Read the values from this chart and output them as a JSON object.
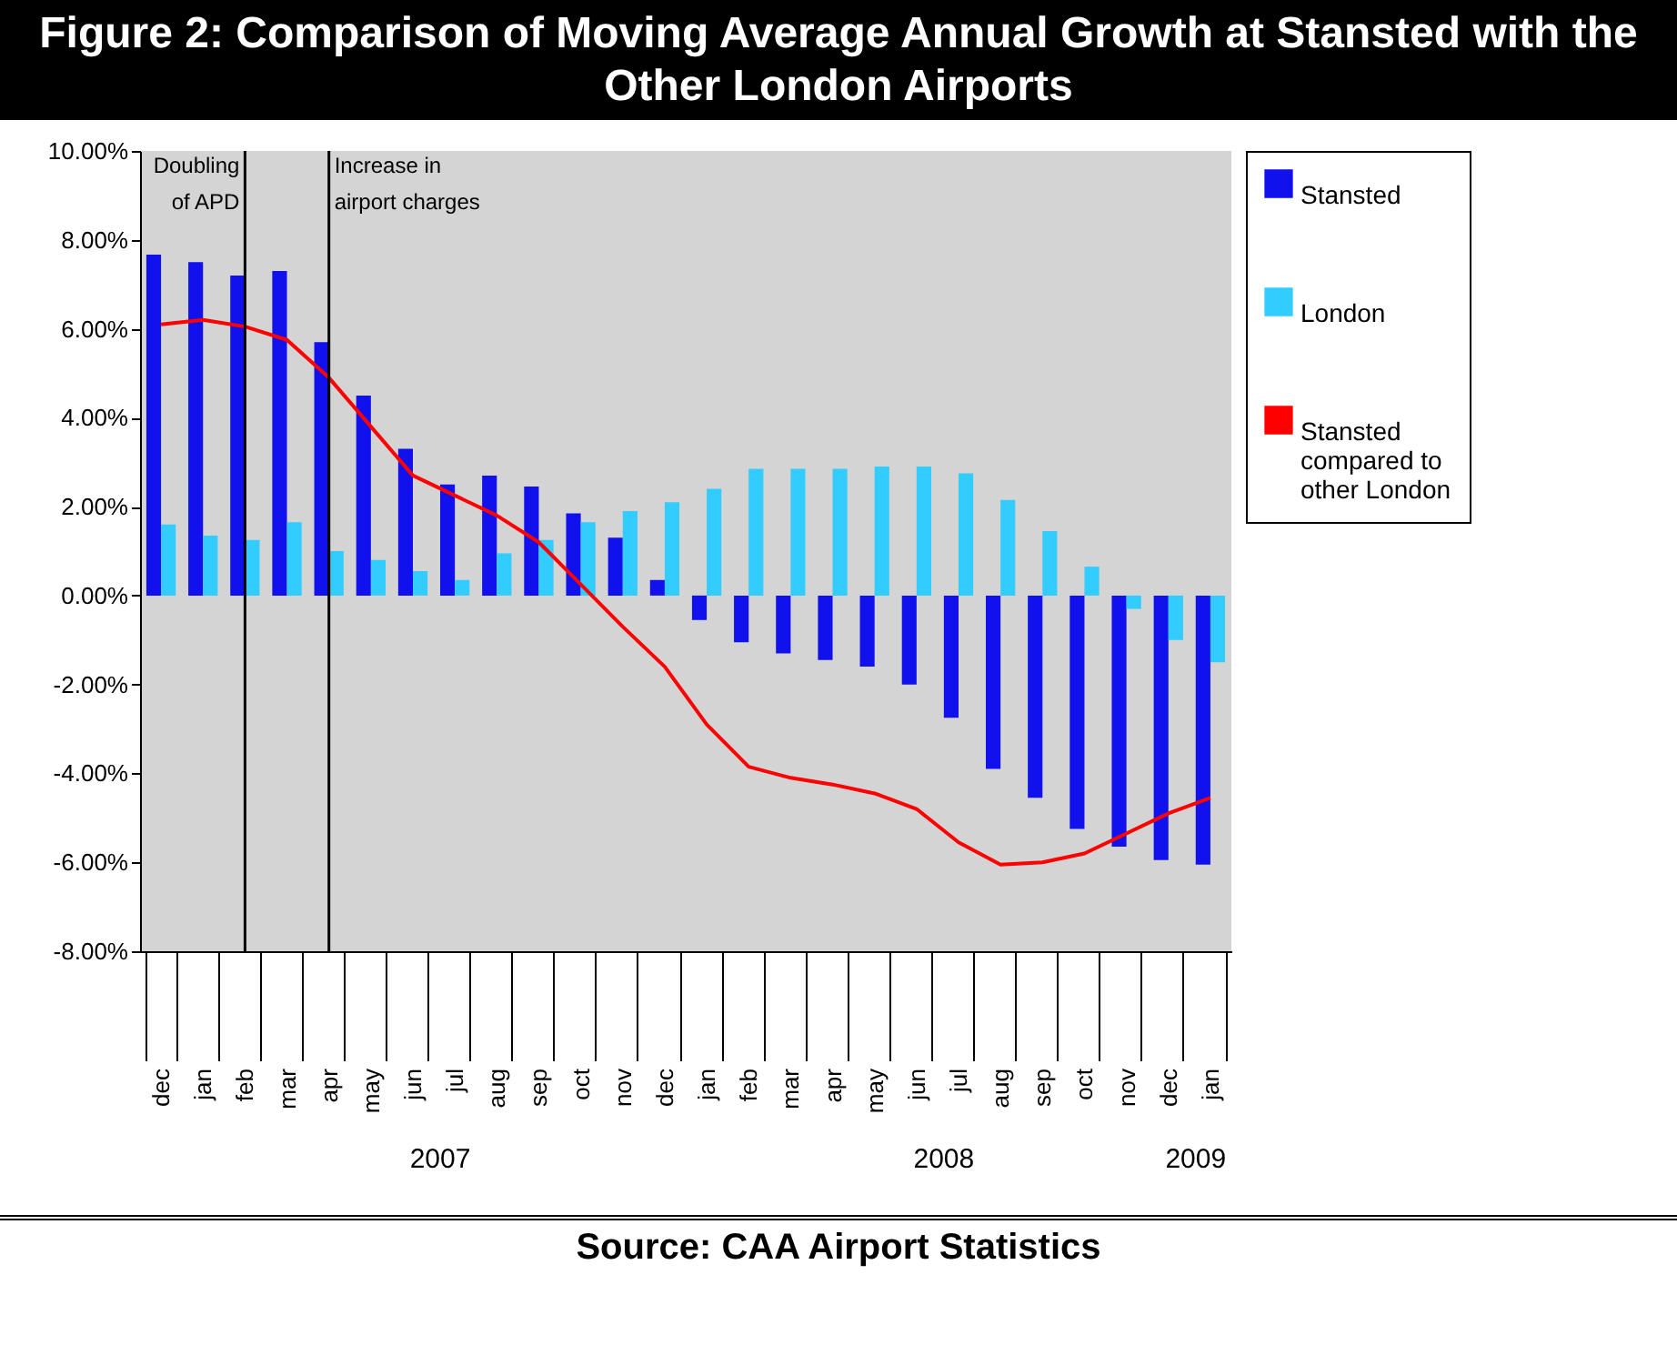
{
  "chart_data": {
    "type": "bar",
    "title": "Figure 2: Comparison of Moving Average Annual Growth at Stansted with the Other London Airports",
    "categories": [
      "dec",
      "jan",
      "feb",
      "mar",
      "apr",
      "may",
      "jun",
      "jul",
      "aug",
      "sep",
      "oct",
      "nov",
      "dec",
      "jan",
      "feb",
      "mar",
      "apr",
      "may",
      "jun",
      "jul",
      "aug",
      "sep",
      "oct",
      "nov",
      "dec",
      "jan"
    ],
    "series": [
      {
        "name": "Stansted",
        "type": "bar",
        "color": "#1111ee",
        "values": [
          7.67,
          7.5,
          7.2,
          7.3,
          5.7,
          4.5,
          3.3,
          2.5,
          2.7,
          2.45,
          1.85,
          1.3,
          0.35,
          -0.55,
          -1.05,
          -1.3,
          -1.45,
          -1.6,
          -2.0,
          -2.75,
          -3.9,
          -4.55,
          -5.25,
          -5.65,
          -5.95,
          -6.05
        ]
      },
      {
        "name": "London",
        "type": "bar",
        "color": "#33ccff",
        "values": [
          1.6,
          1.35,
          1.25,
          1.65,
          1.0,
          0.8,
          0.55,
          0.35,
          0.95,
          1.25,
          1.65,
          1.9,
          2.1,
          2.4,
          2.85,
          2.85,
          2.85,
          2.9,
          2.9,
          2.75,
          2.15,
          1.45,
          0.65,
          -0.3,
          -1.0,
          -1.5
        ]
      },
      {
        "name": "Stansted compared to other London",
        "type": "line",
        "color": "#ff0000",
        "values": [
          6.1,
          6.2,
          6.05,
          5.75,
          4.9,
          3.8,
          2.7,
          2.25,
          1.8,
          1.2,
          0.25,
          -0.7,
          -1.6,
          -2.9,
          -3.85,
          -4.1,
          -4.25,
          -4.45,
          -4.8,
          -5.55,
          -6.05,
          -6.0,
          -5.8,
          -5.35,
          -4.9,
          -4.55
        ]
      }
    ],
    "ylim": [
      -8,
      10
    ],
    "yticks": [
      {
        "value": -8,
        "label": "-8.00%"
      },
      {
        "value": -6,
        "label": "-6.00%"
      },
      {
        "value": -4,
        "label": "-4.00%"
      },
      {
        "value": -2,
        "label": "-2.00%"
      },
      {
        "value": 0,
        "label": "0.00%"
      },
      {
        "value": 2,
        "label": "2.00%"
      },
      {
        "value": 4,
        "label": "4.00%"
      },
      {
        "value": 6,
        "label": "6.00%"
      },
      {
        "value": 8,
        "label": "8.00%"
      },
      {
        "value": 10,
        "label": "10.00%"
      }
    ],
    "ref_lines": [
      {
        "axis": "x",
        "value": "feb",
        "label": "Doubling\nof APD",
        "color": "#000000"
      },
      {
        "axis": "x",
        "value": "apr",
        "label": "Increase in\nairport charges",
        "color": "#000000"
      }
    ],
    "annotations": [
      "2007",
      "2008",
      "2009",
      "Source: CAA Airport Statistics"
    ],
    "legend": "right",
    "grid": false
  }
}
